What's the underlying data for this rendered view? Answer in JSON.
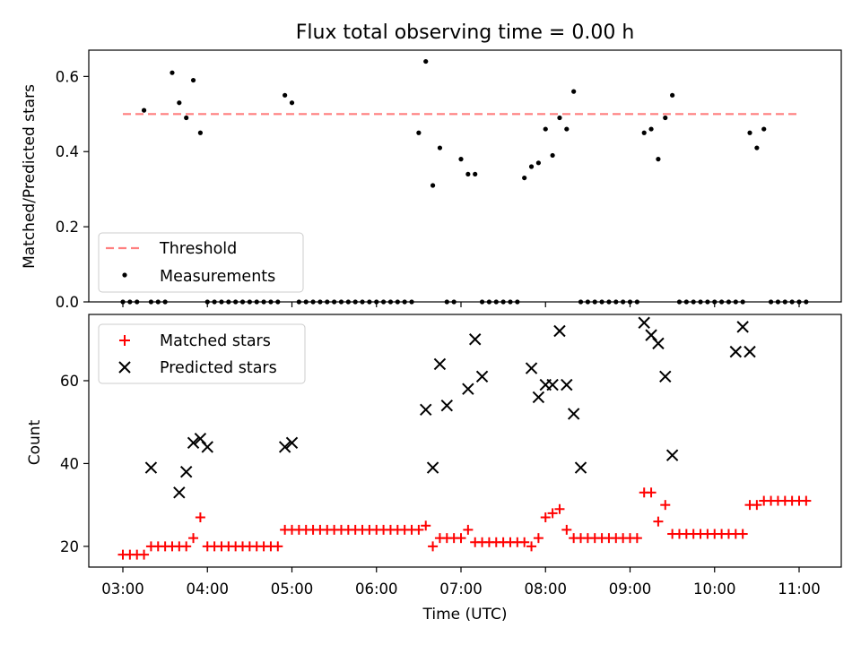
{
  "chart_data": [
    {
      "type": "scatter",
      "title": "Flux total observing time = 0.00 h",
      "xlabel": "",
      "ylabel": "Matched/Predicted stars",
      "ylim": [
        0,
        0.67
      ],
      "yticks": [
        "0.0",
        "0.2",
        "0.4",
        "0.6"
      ],
      "legend_placement": "lower-left",
      "threshold": {
        "name": "Threshold",
        "value": 0.5,
        "x_start": "03:00",
        "x_end": "11:00",
        "color": "#ff7f7f"
      },
      "series": [
        {
          "name": "Measurements",
          "color": "#000000",
          "x": [
            "03:00",
            "03:05",
            "03:10",
            "03:15",
            "03:20",
            "03:25",
            "03:30",
            "03:35",
            "03:40",
            "03:45",
            "03:50",
            "03:55",
            "04:00",
            "04:05",
            "04:10",
            "04:15",
            "04:20",
            "04:25",
            "04:30",
            "04:35",
            "04:40",
            "04:45",
            "04:50",
            "04:55",
            "05:00",
            "05:05",
            "05:10",
            "05:15",
            "05:20",
            "05:25",
            "05:30",
            "05:35",
            "05:40",
            "05:45",
            "05:50",
            "05:55",
            "06:00",
            "06:05",
            "06:10",
            "06:15",
            "06:20",
            "06:25",
            "06:30",
            "06:35",
            "06:40",
            "06:45",
            "06:50",
            "06:55",
            "07:00",
            "07:05",
            "07:10",
            "07:15",
            "07:20",
            "07:25",
            "07:30",
            "07:35",
            "07:40",
            "07:45",
            "07:50",
            "07:55",
            "08:00",
            "08:05",
            "08:10",
            "08:15",
            "08:20",
            "08:25",
            "08:30",
            "08:35",
            "08:40",
            "08:45",
            "08:50",
            "08:55",
            "09:00",
            "09:05",
            "09:10",
            "09:15",
            "09:20",
            "09:25",
            "09:30",
            "09:35",
            "09:40",
            "09:45",
            "09:50",
            "09:55",
            "10:00",
            "10:05",
            "10:10",
            "10:15",
            "10:20",
            "10:25",
            "10:30",
            "10:35",
            "10:40",
            "10:45",
            "10:50",
            "10:55",
            "11:00",
            "11:05"
          ],
          "y": [
            0,
            0,
            0,
            0.51,
            0,
            0,
            0,
            0.61,
            0.53,
            0.49,
            0.59,
            0.45,
            0,
            0,
            0,
            0,
            0,
            0,
            0,
            0,
            0,
            0,
            0,
            0.55,
            0.53,
            0,
            0,
            0,
            0,
            0,
            0,
            0,
            0,
            0,
            0,
            0,
            0,
            0,
            0,
            0,
            0,
            0,
            0.45,
            0.64,
            0.31,
            0.41,
            0,
            0,
            0.38,
            0.34,
            0.34,
            0,
            0,
            0,
            0,
            0,
            0,
            0.33,
            0.36,
            0.37,
            0.46,
            0.39,
            0.49,
            0.46,
            0.56,
            0,
            0,
            0,
            0,
            0,
            0,
            0,
            0,
            0,
            0.45,
            0.46,
            0.38,
            0.49,
            0.55,
            0,
            0,
            0,
            0,
            0,
            0,
            0,
            0,
            0,
            0,
            0.45,
            0.41,
            0.46,
            0,
            0,
            0,
            0,
            0,
            0
          ]
        }
      ]
    },
    {
      "type": "scatter",
      "title": "",
      "xlabel": "Time (UTC)",
      "ylabel": "Count",
      "ylim": [
        15,
        76
      ],
      "yticks": [
        "20",
        "40",
        "60"
      ],
      "xticks": [
        "03:00",
        "04:00",
        "05:00",
        "06:00",
        "07:00",
        "08:00",
        "09:00",
        "10:00",
        "11:00"
      ],
      "legend_placement": "top-left",
      "series": [
        {
          "name": "Matched stars",
          "color": "#ff0000",
          "marker": "plus",
          "x": [
            "03:00",
            "03:05",
            "03:10",
            "03:15",
            "03:20",
            "03:25",
            "03:30",
            "03:35",
            "03:40",
            "03:45",
            "03:50",
            "03:55",
            "04:00",
            "04:05",
            "04:10",
            "04:15",
            "04:20",
            "04:25",
            "04:30",
            "04:35",
            "04:40",
            "04:45",
            "04:50",
            "04:55",
            "05:00",
            "05:05",
            "05:10",
            "05:15",
            "05:20",
            "05:25",
            "05:30",
            "05:35",
            "05:40",
            "05:45",
            "05:50",
            "05:55",
            "06:00",
            "06:05",
            "06:10",
            "06:15",
            "06:20",
            "06:25",
            "06:30",
            "06:35",
            "06:40",
            "06:45",
            "06:50",
            "06:55",
            "07:00",
            "07:05",
            "07:10",
            "07:15",
            "07:20",
            "07:25",
            "07:30",
            "07:35",
            "07:40",
            "07:45",
            "07:50",
            "07:55",
            "08:00",
            "08:05",
            "08:10",
            "08:15",
            "08:20",
            "08:25",
            "08:30",
            "08:35",
            "08:40",
            "08:45",
            "08:50",
            "08:55",
            "09:00",
            "09:05",
            "09:10",
            "09:15",
            "09:20",
            "09:25",
            "09:30",
            "09:35",
            "09:40",
            "09:45",
            "09:50",
            "09:55",
            "10:00",
            "10:05",
            "10:10",
            "10:15",
            "10:20",
            "10:25",
            "10:30",
            "10:35",
            "10:40",
            "10:45",
            "10:50",
            "10:55",
            "11:00",
            "11:05"
          ],
          "y": [
            18,
            18,
            18,
            18,
            20,
            20,
            20,
            20,
            20,
            20,
            22,
            27,
            20,
            20,
            20,
            20,
            20,
            20,
            20,
            20,
            20,
            20,
            20,
            24,
            24,
            24,
            24,
            24,
            24,
            24,
            24,
            24,
            24,
            24,
            24,
            24,
            24,
            24,
            24,
            24,
            24,
            24,
            24,
            25,
            20,
            22,
            22,
            22,
            22,
            24,
            21,
            21,
            21,
            21,
            21,
            21,
            21,
            21,
            20,
            22,
            27,
            28,
            29,
            24,
            22,
            22,
            22,
            22,
            22,
            22,
            22,
            22,
            22,
            22,
            33,
            33,
            26,
            30,
            23,
            23,
            23,
            23,
            23,
            23,
            23,
            23,
            23,
            23,
            23,
            30,
            30,
            31,
            31,
            31,
            31,
            31,
            31,
            31
          ]
        },
        {
          "name": "Predicted stars",
          "color": "#000000",
          "marker": "x",
          "x": [
            "03:20",
            "03:40",
            "03:45",
            "03:50",
            "03:55",
            "04:00",
            "04:55",
            "05:00",
            "06:35",
            "06:40",
            "06:45",
            "06:50",
            "07:05",
            "07:10",
            "07:15",
            "07:50",
            "07:55",
            "08:00",
            "08:05",
            "08:10",
            "08:15",
            "08:20",
            "08:25",
            "08:30",
            "09:10",
            "09:15",
            "09:20",
            "09:25",
            "09:30",
            "10:15",
            "10:20",
            "10:25"
          ],
          "y": [
            39,
            33,
            38,
            45,
            46,
            44,
            44,
            45,
            53,
            39,
            64,
            54,
            58,
            70,
            61,
            63,
            56,
            59,
            59,
            72,
            59,
            52,
            39,
            null,
            74,
            71,
            69,
            61,
            42,
            67,
            73,
            67
          ]
        }
      ]
    }
  ]
}
